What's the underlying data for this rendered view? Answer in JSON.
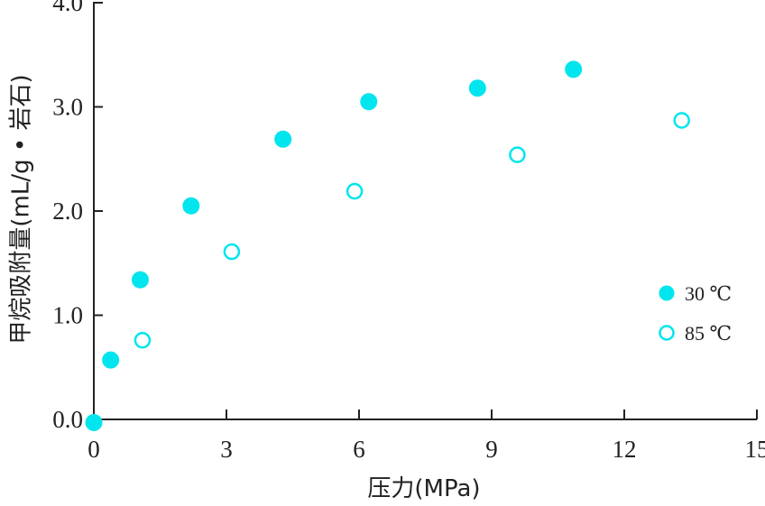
{
  "chart_data": {
    "type": "scatter",
    "xlabel": "压力(MPa)",
    "ylabel": "甲烷吸附量(mL/g • 岩石)",
    "xlim": [
      0,
      15
    ],
    "ylim": [
      0,
      4.0
    ],
    "xticks": [
      "0",
      "3",
      "6",
      "9",
      "12",
      "15"
    ],
    "yticks": [
      "0.0",
      "1.0",
      "2.0",
      "3.0",
      "4.0"
    ],
    "grid": false,
    "legend_position": "right",
    "series": [
      {
        "name": "30 ℃",
        "marker": "filled-circle",
        "color": "#00E5EE",
        "x": [
          0.0,
          0.38,
          1.05,
          2.2,
          4.28,
          6.22,
          8.68,
          10.85
        ],
        "y": [
          -0.03,
          0.57,
          1.34,
          2.05,
          2.69,
          3.05,
          3.18,
          3.36
        ]
      },
      {
        "name": "85 ℃",
        "marker": "open-circle",
        "color": "#00E5EE",
        "x": [
          1.1,
          3.12,
          5.9,
          9.58,
          13.3
        ],
        "y": [
          0.76,
          1.61,
          2.19,
          2.54,
          2.87
        ]
      }
    ]
  }
}
